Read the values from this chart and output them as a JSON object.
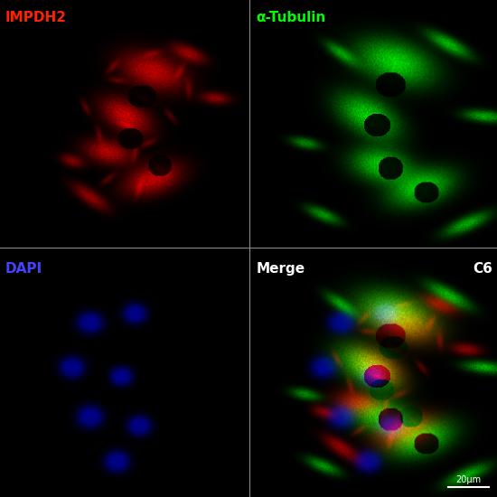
{
  "background_color": "#000000",
  "panel_labels": {
    "top_left": "IMPDH2",
    "top_right": "α-Tubulin",
    "bottom_left": "DAPI",
    "bottom_right_left": "Merge",
    "bottom_right_right": "C6"
  },
  "label_colors": {
    "top_left": "#ff2200",
    "top_right": "#00ff00",
    "bottom_left": "#4444ff",
    "bottom_right_left": "#ffffff",
    "bottom_right_right": "#ffffff"
  },
  "divider_color": "#888888",
  "scalebar_text": "20μm",
  "scalebar_color": "#ffffff",
  "figsize": [
    5.5,
    5.5
  ],
  "dpi": 100
}
